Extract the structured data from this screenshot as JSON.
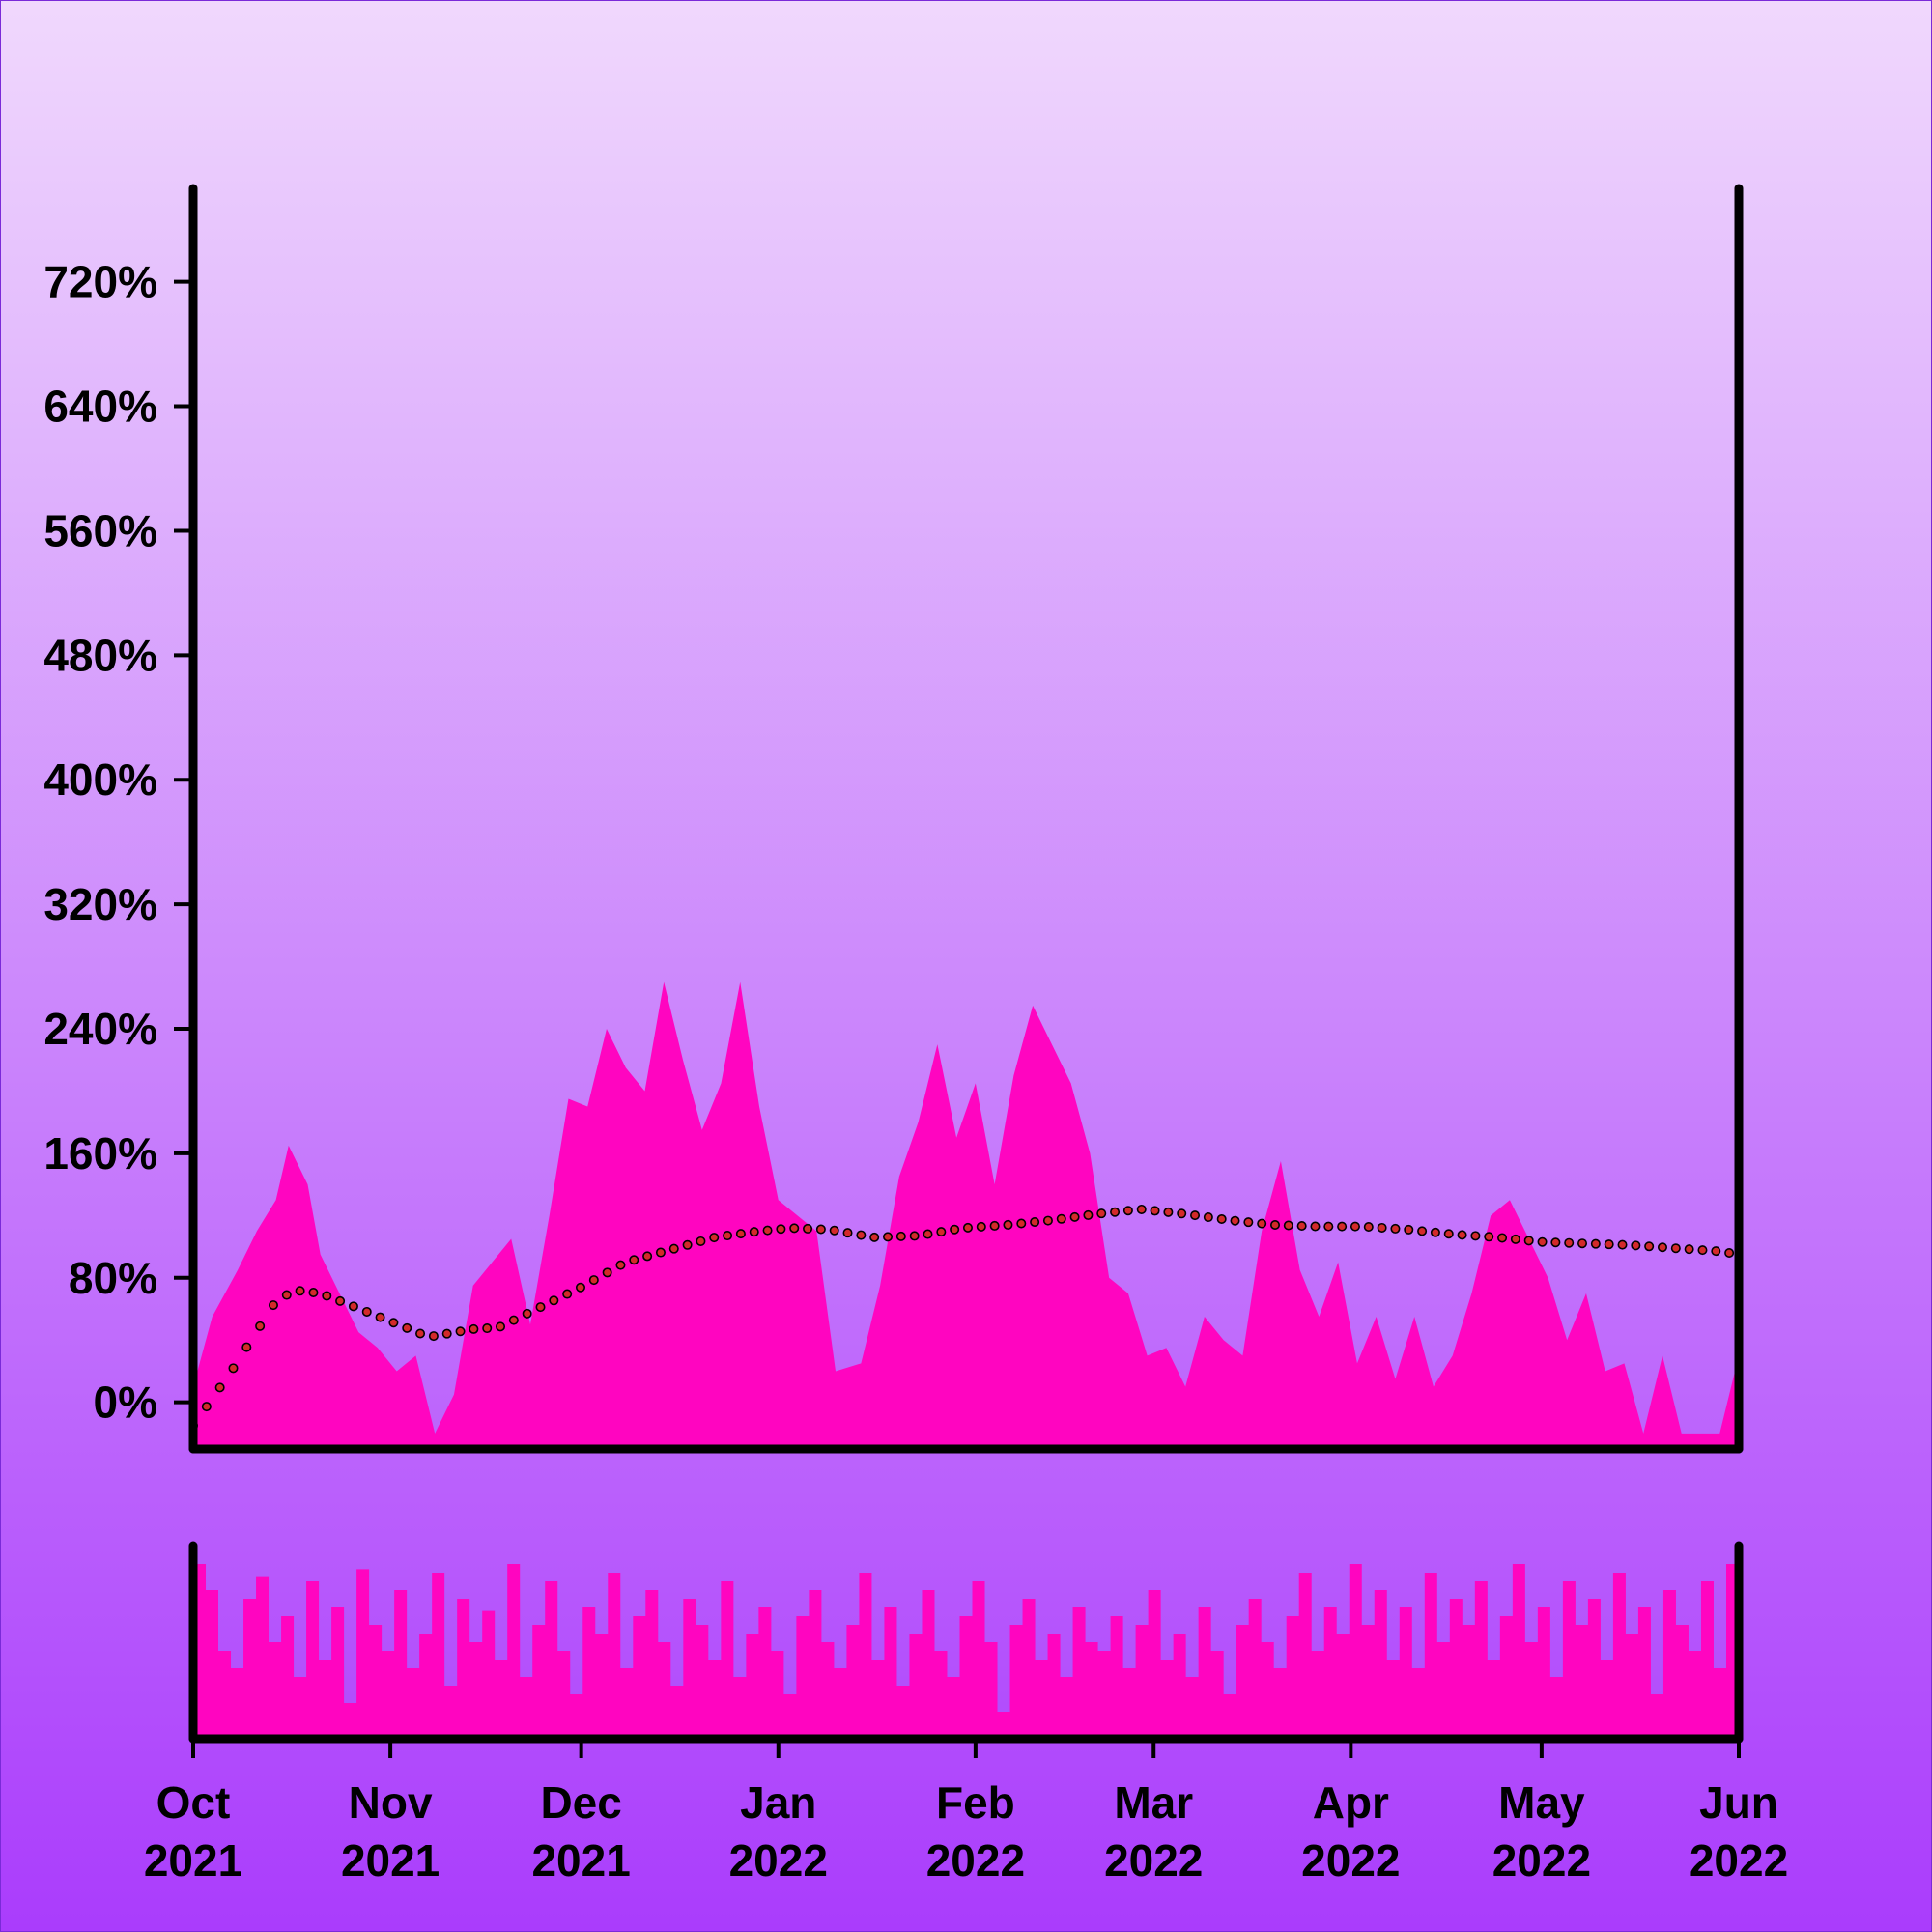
{
  "colors": {
    "background_top": "#f0d8fd",
    "background_bottom": "#aa3cfc",
    "area_fill": "#ff05c0",
    "trend_fill": "#d42a2a",
    "trend_stroke": "#000000",
    "axis": "#000000"
  },
  "chart_data": [
    {
      "type": "area",
      "panel": "main",
      "title": "",
      "xlabel": "",
      "ylabel": "",
      "x_range": [
        "2021-10-01",
        "2022-06-01"
      ],
      "ylim": [
        -30,
        780
      ],
      "y_ticks": [
        0,
        80,
        160,
        240,
        320,
        400,
        480,
        560,
        640,
        720
      ],
      "y_tick_labels": [
        "0%",
        "80%",
        "160%",
        "240%",
        "320%",
        "400%",
        "480%",
        "560%",
        "640%",
        "720%"
      ],
      "x_ticks": [
        "2021-10-01",
        "2021-11-01",
        "2021-12-01",
        "2022-01-01",
        "2022-02-01",
        "2022-03-01",
        "2022-04-01",
        "2022-05-01",
        "2022-06-01"
      ],
      "x_tick_labels": [
        [
          "Oct",
          "2021"
        ],
        [
          "Nov",
          "2021"
        ],
        [
          "Dec",
          "2021"
        ],
        [
          "Jan",
          "2022"
        ],
        [
          "Feb",
          "2022"
        ],
        [
          "Mar",
          "2022"
        ],
        [
          "Apr",
          "2022"
        ],
        [
          "May",
          "2022"
        ],
        [
          "Jun",
          "2022"
        ]
      ],
      "grid": false,
      "series": [
        {
          "kind": "area",
          "dates": [
            "2021-10-01",
            "2021-10-04",
            "2021-10-08",
            "2021-10-11",
            "2021-10-14",
            "2021-10-16",
            "2021-10-19",
            "2021-10-21",
            "2021-10-24",
            "2021-10-27",
            "2021-10-30",
            "2021-11-02",
            "2021-11-05",
            "2021-11-08",
            "2021-11-11",
            "2021-11-14",
            "2021-11-17",
            "2021-11-20",
            "2021-11-23",
            "2021-11-26",
            "2021-11-29",
            "2021-12-02",
            "2021-12-05",
            "2021-12-08",
            "2021-12-11",
            "2021-12-14",
            "2021-12-17",
            "2021-12-20",
            "2021-12-23",
            "2021-12-26",
            "2021-12-29",
            "2022-01-01",
            "2022-01-04",
            "2022-01-07",
            "2022-01-10",
            "2022-01-14",
            "2022-01-17",
            "2022-01-20",
            "2022-01-23",
            "2022-01-26",
            "2022-01-29",
            "2022-02-01",
            "2022-02-04",
            "2022-02-07",
            "2022-02-10",
            "2022-02-13",
            "2022-02-16",
            "2022-02-19",
            "2022-02-22",
            "2022-02-25",
            "2022-02-28",
            "2022-03-03",
            "2022-03-06",
            "2022-03-09",
            "2022-03-12",
            "2022-03-15",
            "2022-03-18",
            "2022-03-21",
            "2022-03-24",
            "2022-03-27",
            "2022-03-30",
            "2022-04-02",
            "2022-04-05",
            "2022-04-08",
            "2022-04-11",
            "2022-04-14",
            "2022-04-17",
            "2022-04-20",
            "2022-04-23",
            "2022-04-26",
            "2022-04-29",
            "2022-05-02",
            "2022-05-05",
            "2022-05-08",
            "2022-05-11",
            "2022-05-14",
            "2022-05-17",
            "2022-05-20",
            "2022-05-23",
            "2022-05-26",
            "2022-05-29",
            "2022-06-01"
          ],
          "values": [
            10,
            55,
            85,
            110,
            130,
            165,
            140,
            95,
            70,
            45,
            35,
            20,
            30,
            -20,
            5,
            75,
            90,
            105,
            50,
            120,
            195,
            190,
            240,
            215,
            200,
            270,
            220,
            175,
            205,
            270,
            190,
            130,
            120,
            110,
            20,
            25,
            75,
            145,
            180,
            230,
            170,
            205,
            140,
            210,
            255,
            230,
            205,
            160,
            80,
            70,
            30,
            35,
            10,
            55,
            40,
            30,
            110,
            155,
            85,
            55,
            90,
            25,
            55,
            15,
            55,
            10,
            30,
            70,
            120,
            130,
            105,
            80,
            40,
            70,
            20,
            25,
            -20,
            30,
            -20,
            -20,
            -20,
            30
          ]
        },
        {
          "kind": "trend_dots",
          "dates": [
            "2021-10-01",
            "2021-10-07",
            "2021-10-14",
            "2021-10-17",
            "2021-10-21",
            "2021-10-26",
            "2021-11-01",
            "2021-11-07",
            "2021-11-14",
            "2021-11-18",
            "2021-11-24",
            "2021-12-01",
            "2021-12-08",
            "2021-12-15",
            "2021-12-22",
            "2021-12-29",
            "2022-01-03",
            "2022-01-09",
            "2022-01-16",
            "2022-01-23",
            "2022-01-30",
            "2022-02-06",
            "2022-02-13",
            "2022-02-20",
            "2022-02-27",
            "2022-03-06",
            "2022-03-13",
            "2022-03-20",
            "2022-03-27",
            "2022-04-03",
            "2022-04-10",
            "2022-04-17",
            "2022-04-24",
            "2022-05-01",
            "2022-05-08",
            "2022-05-15",
            "2022-05-22",
            "2022-05-29",
            "2022-06-01"
          ],
          "values": [
            -15,
            20,
            65,
            72,
            70,
            62,
            52,
            42,
            47,
            48,
            60,
            74,
            90,
            98,
            106,
            110,
            112,
            111,
            106,
            107,
            112,
            114,
            117,
            121,
            124,
            121,
            117,
            114,
            113,
            113,
            111,
            108,
            106,
            103,
            102,
            101,
            99,
            97,
            95
          ]
        }
      ]
    },
    {
      "type": "area",
      "panel": "navigator",
      "title": "",
      "x_range": [
        "2021-10-01",
        "2022-06-01"
      ],
      "ylim": [
        0,
        1
      ],
      "note_values_are_relative": true,
      "series": [
        {
          "kind": "area",
          "values": [
            0.95,
            0.8,
            0.45,
            0.35,
            0.75,
            0.88,
            0.5,
            0.65,
            0.3,
            0.85,
            0.4,
            0.7,
            0.15,
            0.92,
            0.6,
            0.45,
            0.8,
            0.35,
            0.55,
            0.9,
            0.25,
            0.75,
            0.5,
            0.68,
            0.4,
            0.95,
            0.3,
            0.6,
            0.85,
            0.45,
            0.2,
            0.7,
            0.55,
            0.9,
            0.35,
            0.65,
            0.8,
            0.5,
            0.25,
            0.75,
            0.6,
            0.4,
            0.85,
            0.3,
            0.55,
            0.7,
            0.45,
            0.2,
            0.65,
            0.8,
            0.5,
            0.35,
            0.6,
            0.9,
            0.4,
            0.7,
            0.25,
            0.55,
            0.8,
            0.45,
            0.3,
            0.65,
            0.85,
            0.5,
            0.1,
            0.6,
            0.75,
            0.4,
            0.55,
            0.3,
            0.7,
            0.5,
            0.45,
            0.65,
            0.35,
            0.6,
            0.8,
            0.4,
            0.55,
            0.3,
            0.7,
            0.45,
            0.2,
            0.6,
            0.75,
            0.5,
            0.35,
            0.65,
            0.9,
            0.45,
            0.7,
            0.55,
            0.95,
            0.6,
            0.8,
            0.4,
            0.7,
            0.35,
            0.9,
            0.5,
            0.75,
            0.6,
            0.85,
            0.4,
            0.65,
            0.95,
            0.5,
            0.7,
            0.3,
            0.85,
            0.6,
            0.75,
            0.4,
            0.9,
            0.55,
            0.7,
            0.2,
            0.8,
            0.6,
            0.45,
            0.85,
            0.35,
            0.95
          ]
        }
      ]
    }
  ]
}
